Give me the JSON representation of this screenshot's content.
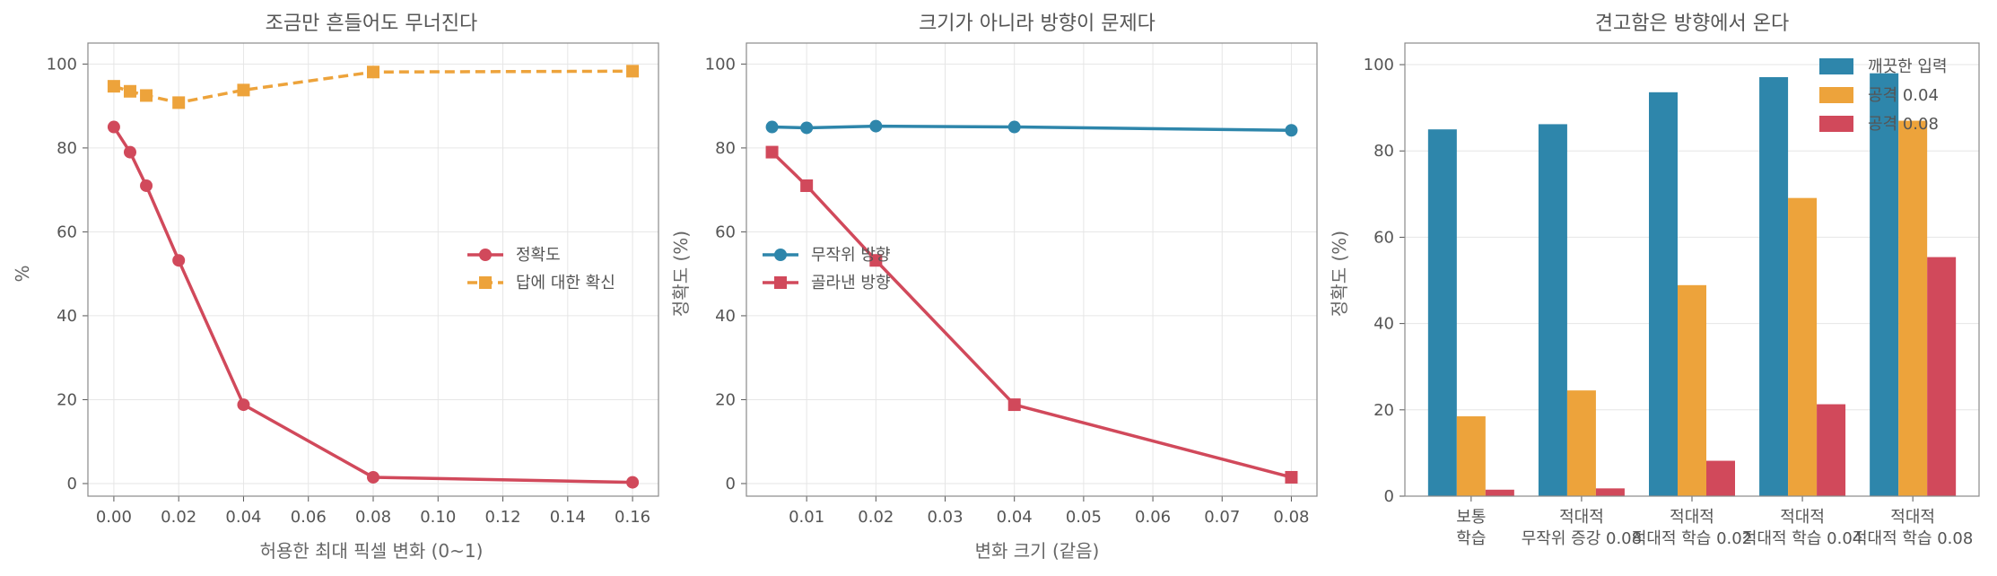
{
  "chart_data": [
    {
      "type": "line",
      "title": "조금만 흔들어도 무너진다",
      "xlabel": "허용한 최대 픽셀 변화 (0~1)",
      "ylabel": "%",
      "x_ticks": [
        "0.00",
        "0.02",
        "0.04",
        "0.06",
        "0.08",
        "0.10",
        "0.12",
        "0.14",
        "0.16"
      ],
      "y_ticks": [
        "0",
        "20",
        "40",
        "60",
        "80",
        "100"
      ],
      "xlim": [
        -0.008,
        0.168
      ],
      "ylim": [
        -3,
        105
      ],
      "grid": true,
      "legend_position": "center-right",
      "series": [
        {
          "name": "정확도",
          "color": "#D1495B",
          "marker": "circle",
          "dash": false,
          "x": [
            0,
            0.005,
            0.01,
            0.02,
            0.04,
            0.08,
            0.16
          ],
          "y": [
            85,
            79,
            71,
            53.2,
            18.8,
            1.5,
            0.3
          ]
        },
        {
          "name": "답에 대한 확신",
          "color": "#EDA33B",
          "marker": "square",
          "dash": true,
          "x": [
            0,
            0.005,
            0.01,
            0.02,
            0.04,
            0.08,
            0.16
          ],
          "y": [
            94.7,
            93.5,
            92.5,
            90.8,
            93.8,
            98.1,
            98.3
          ]
        }
      ]
    },
    {
      "type": "line",
      "title": "크기가 아니라 방향이 문제다",
      "xlabel": "변화 크기 (같음)",
      "ylabel": "정확도 (%)",
      "x_ticks": [
        "0.01",
        "0.02",
        "0.03",
        "0.04",
        "0.05",
        "0.06",
        "0.07",
        "0.08"
      ],
      "y_ticks": [
        "0",
        "20",
        "40",
        "60",
        "80",
        "100"
      ],
      "xlim": [
        0.0013,
        0.0837
      ],
      "ylim": [
        -3,
        105
      ],
      "grid": true,
      "legend_position": "center-left",
      "series": [
        {
          "name": "무작위 방향",
          "color": "#2E86AB",
          "marker": "circle",
          "dash": false,
          "x": [
            0.005,
            0.01,
            0.02,
            0.04,
            0.08
          ],
          "y": [
            85,
            84.8,
            85.2,
            85,
            84.2
          ]
        },
        {
          "name": "골라낸 방향",
          "color": "#D1495B",
          "marker": "square",
          "dash": false,
          "x": [
            0.005,
            0.01,
            0.02,
            0.04,
            0.08
          ],
          "y": [
            79,
            71,
            53.2,
            18.8,
            1.5
          ]
        }
      ]
    },
    {
      "type": "bar",
      "title": "견고함은 방향에서 온다",
      "xlabel": "",
      "ylabel": "정확도 (%)",
      "categories": [
        [
          "보통",
          "학습"
        ],
        [
          "적대적",
          "무작위 증강 0.08"
        ],
        [
          "적대적",
          "적대적 학습 0.02"
        ],
        [
          "적대적",
          "적대적 학습 0.04"
        ],
        [
          "적대적",
          "적대적 학습 0.08"
        ]
      ],
      "y_ticks": [
        "0",
        "20",
        "40",
        "60",
        "80",
        "100"
      ],
      "ylim": [
        0,
        105
      ],
      "grid": true,
      "legend_position": "top-right",
      "series": [
        {
          "name": "깨끗한 입력",
          "color": "#2E86AB",
          "values": [
            85,
            86.2,
            93.6,
            97.1,
            98
          ]
        },
        {
          "name": "공격 0.04",
          "color": "#EDA33B",
          "values": [
            18.5,
            24.5,
            48.9,
            69.1,
            87
          ]
        },
        {
          "name": "공격 0.08",
          "color": "#D1495B",
          "values": [
            1.5,
            1.8,
            8.2,
            21.3,
            55.4
          ]
        }
      ]
    }
  ]
}
